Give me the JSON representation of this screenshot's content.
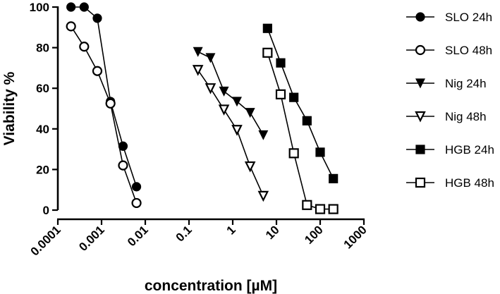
{
  "chart_data": {
    "type": "scatter",
    "title": "",
    "xlabel": "concentration [µM]",
    "ylabel": "Viability %",
    "xscale": "log",
    "xlim": [
      0.0001,
      1000
    ],
    "ylim": [
      0,
      100
    ],
    "x_tick_labels": [
      "0.0001",
      "0.001",
      "0.01",
      "0.1",
      "1",
      "10",
      "100",
      "1000"
    ],
    "y_tick_labels": [
      "0",
      "20",
      "40",
      "60",
      "80",
      "100"
    ],
    "grid": false,
    "legend_position": "right",
    "series": [
      {
        "name": "SLO 24h",
        "marker": "circle",
        "fill": "filled",
        "x": [
          0.0002,
          0.0004,
          0.0008,
          0.0016,
          0.0031,
          0.0063
        ],
        "y": [
          100,
          100,
          94.5,
          53.5,
          31.5,
          11.5
        ]
      },
      {
        "name": "SLO 48h",
        "marker": "circle",
        "fill": "open",
        "x": [
          0.0002,
          0.0004,
          0.0008,
          0.0016,
          0.0031,
          0.0063
        ],
        "y": [
          90.5,
          80.5,
          68.5,
          52.5,
          22,
          3.5
        ]
      },
      {
        "name": "Nig 24h",
        "marker": "triangle-down",
        "fill": "filled",
        "x": [
          0.16,
          0.31,
          0.63,
          1.25,
          2.5,
          5
        ],
        "y": [
          78,
          75,
          58.5,
          53.5,
          48,
          37
        ]
      },
      {
        "name": "Nig 48h",
        "marker": "triangle-down",
        "fill": "open",
        "x": [
          0.16,
          0.31,
          0.63,
          1.25,
          2.5,
          5
        ],
        "y": [
          69,
          60,
          49.5,
          39.5,
          21.5,
          7
        ]
      },
      {
        "name": "HGB 24h",
        "marker": "square",
        "fill": "filled",
        "x": [
          6.25,
          12.5,
          25,
          50,
          100,
          200
        ],
        "y": [
          89.5,
          72.5,
          55.5,
          44,
          28.5,
          15.5
        ]
      },
      {
        "name": "HGB 48h",
        "marker": "square",
        "fill": "open",
        "x": [
          6.25,
          12.5,
          25,
          50,
          100,
          200
        ],
        "y": [
          77.5,
          57,
          28,
          2.5,
          0.5,
          0.5
        ]
      }
    ]
  }
}
